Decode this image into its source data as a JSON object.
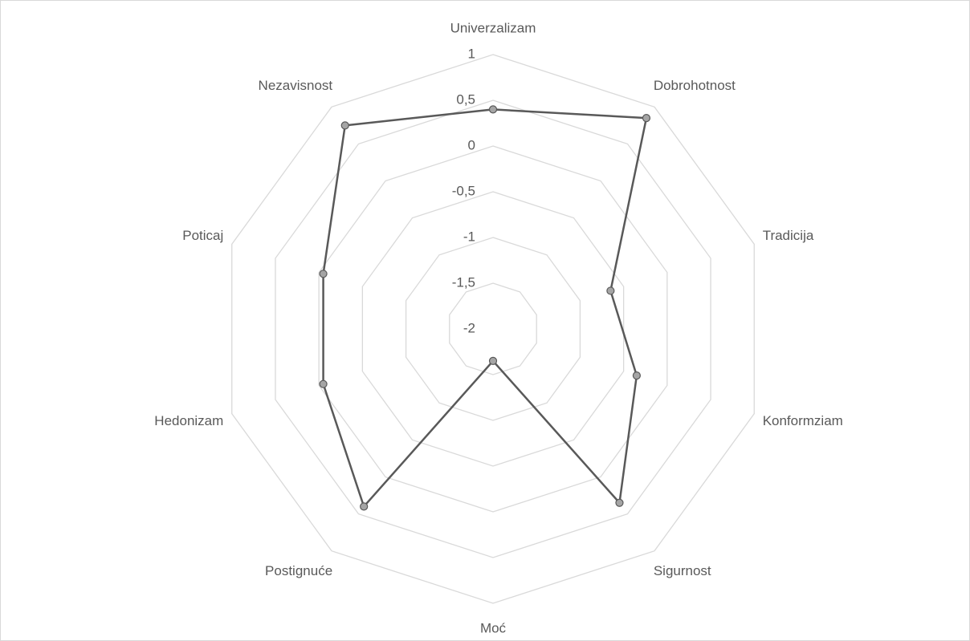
{
  "chart_data": {
    "type": "radar",
    "categories": [
      "Univerzalizam",
      "Dobrohotnost",
      "Tradicija",
      "Konformziam",
      "Sigurnost",
      "Moć",
      "Postignuće",
      "Hedonizam",
      "Poticaj",
      "Nezavisnost"
    ],
    "values": [
      0.4,
      0.85,
      -0.65,
      -0.35,
      0.35,
      -1.65,
      0.4,
      -0.05,
      -0.05,
      0.75
    ],
    "color": "#595959",
    "marker_color": "#a5a5a5",
    "ylim": [
      -2,
      1
    ],
    "yticks": [
      -2,
      {
        "value": -1.5,
        "label": "-1,5"
      },
      -1,
      {
        "value": -0.5,
        "label": "-0,5"
      },
      0,
      {
        "value": 0.5,
        "label": "0,5"
      },
      1
    ],
    "grid": true
  }
}
